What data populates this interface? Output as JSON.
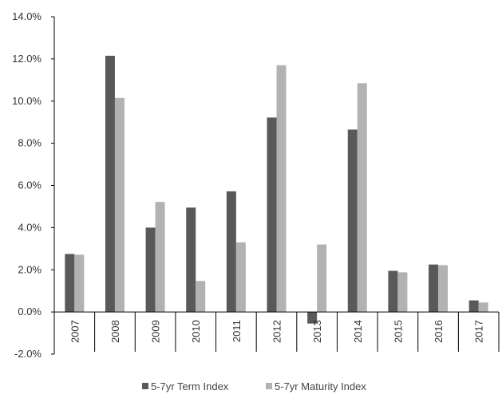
{
  "chart_data": {
    "type": "bar",
    "categories": [
      "2007",
      "2008",
      "2009",
      "2010",
      "2011",
      "2012",
      "2013",
      "2014",
      "2015",
      "2016",
      "2017"
    ],
    "series": [
      {
        "name": "5-7yr Term Index",
        "values": [
          2.75,
          12.15,
          4.0,
          4.95,
          5.72,
          9.22,
          -0.55,
          8.65,
          1.95,
          2.25,
          0.55
        ]
      },
      {
        "name": "5-7yr Maturity Index",
        "values": [
          2.72,
          10.15,
          5.22,
          1.47,
          3.3,
          11.7,
          3.2,
          10.85,
          1.88,
          2.22,
          0.45
        ]
      }
    ],
    "y_ticks": [
      "-2.0%",
      "0.0%",
      "2.0%",
      "4.0%",
      "6.0%",
      "8.0%",
      "10.0%",
      "12.0%",
      "14.0%"
    ],
    "ylim": [
      -2,
      14
    ],
    "grid": false,
    "legend_position": "bottom",
    "colors": {
      "series_1": "#595959",
      "series_2": "#b2b2b2",
      "axis": "#000000"
    }
  }
}
